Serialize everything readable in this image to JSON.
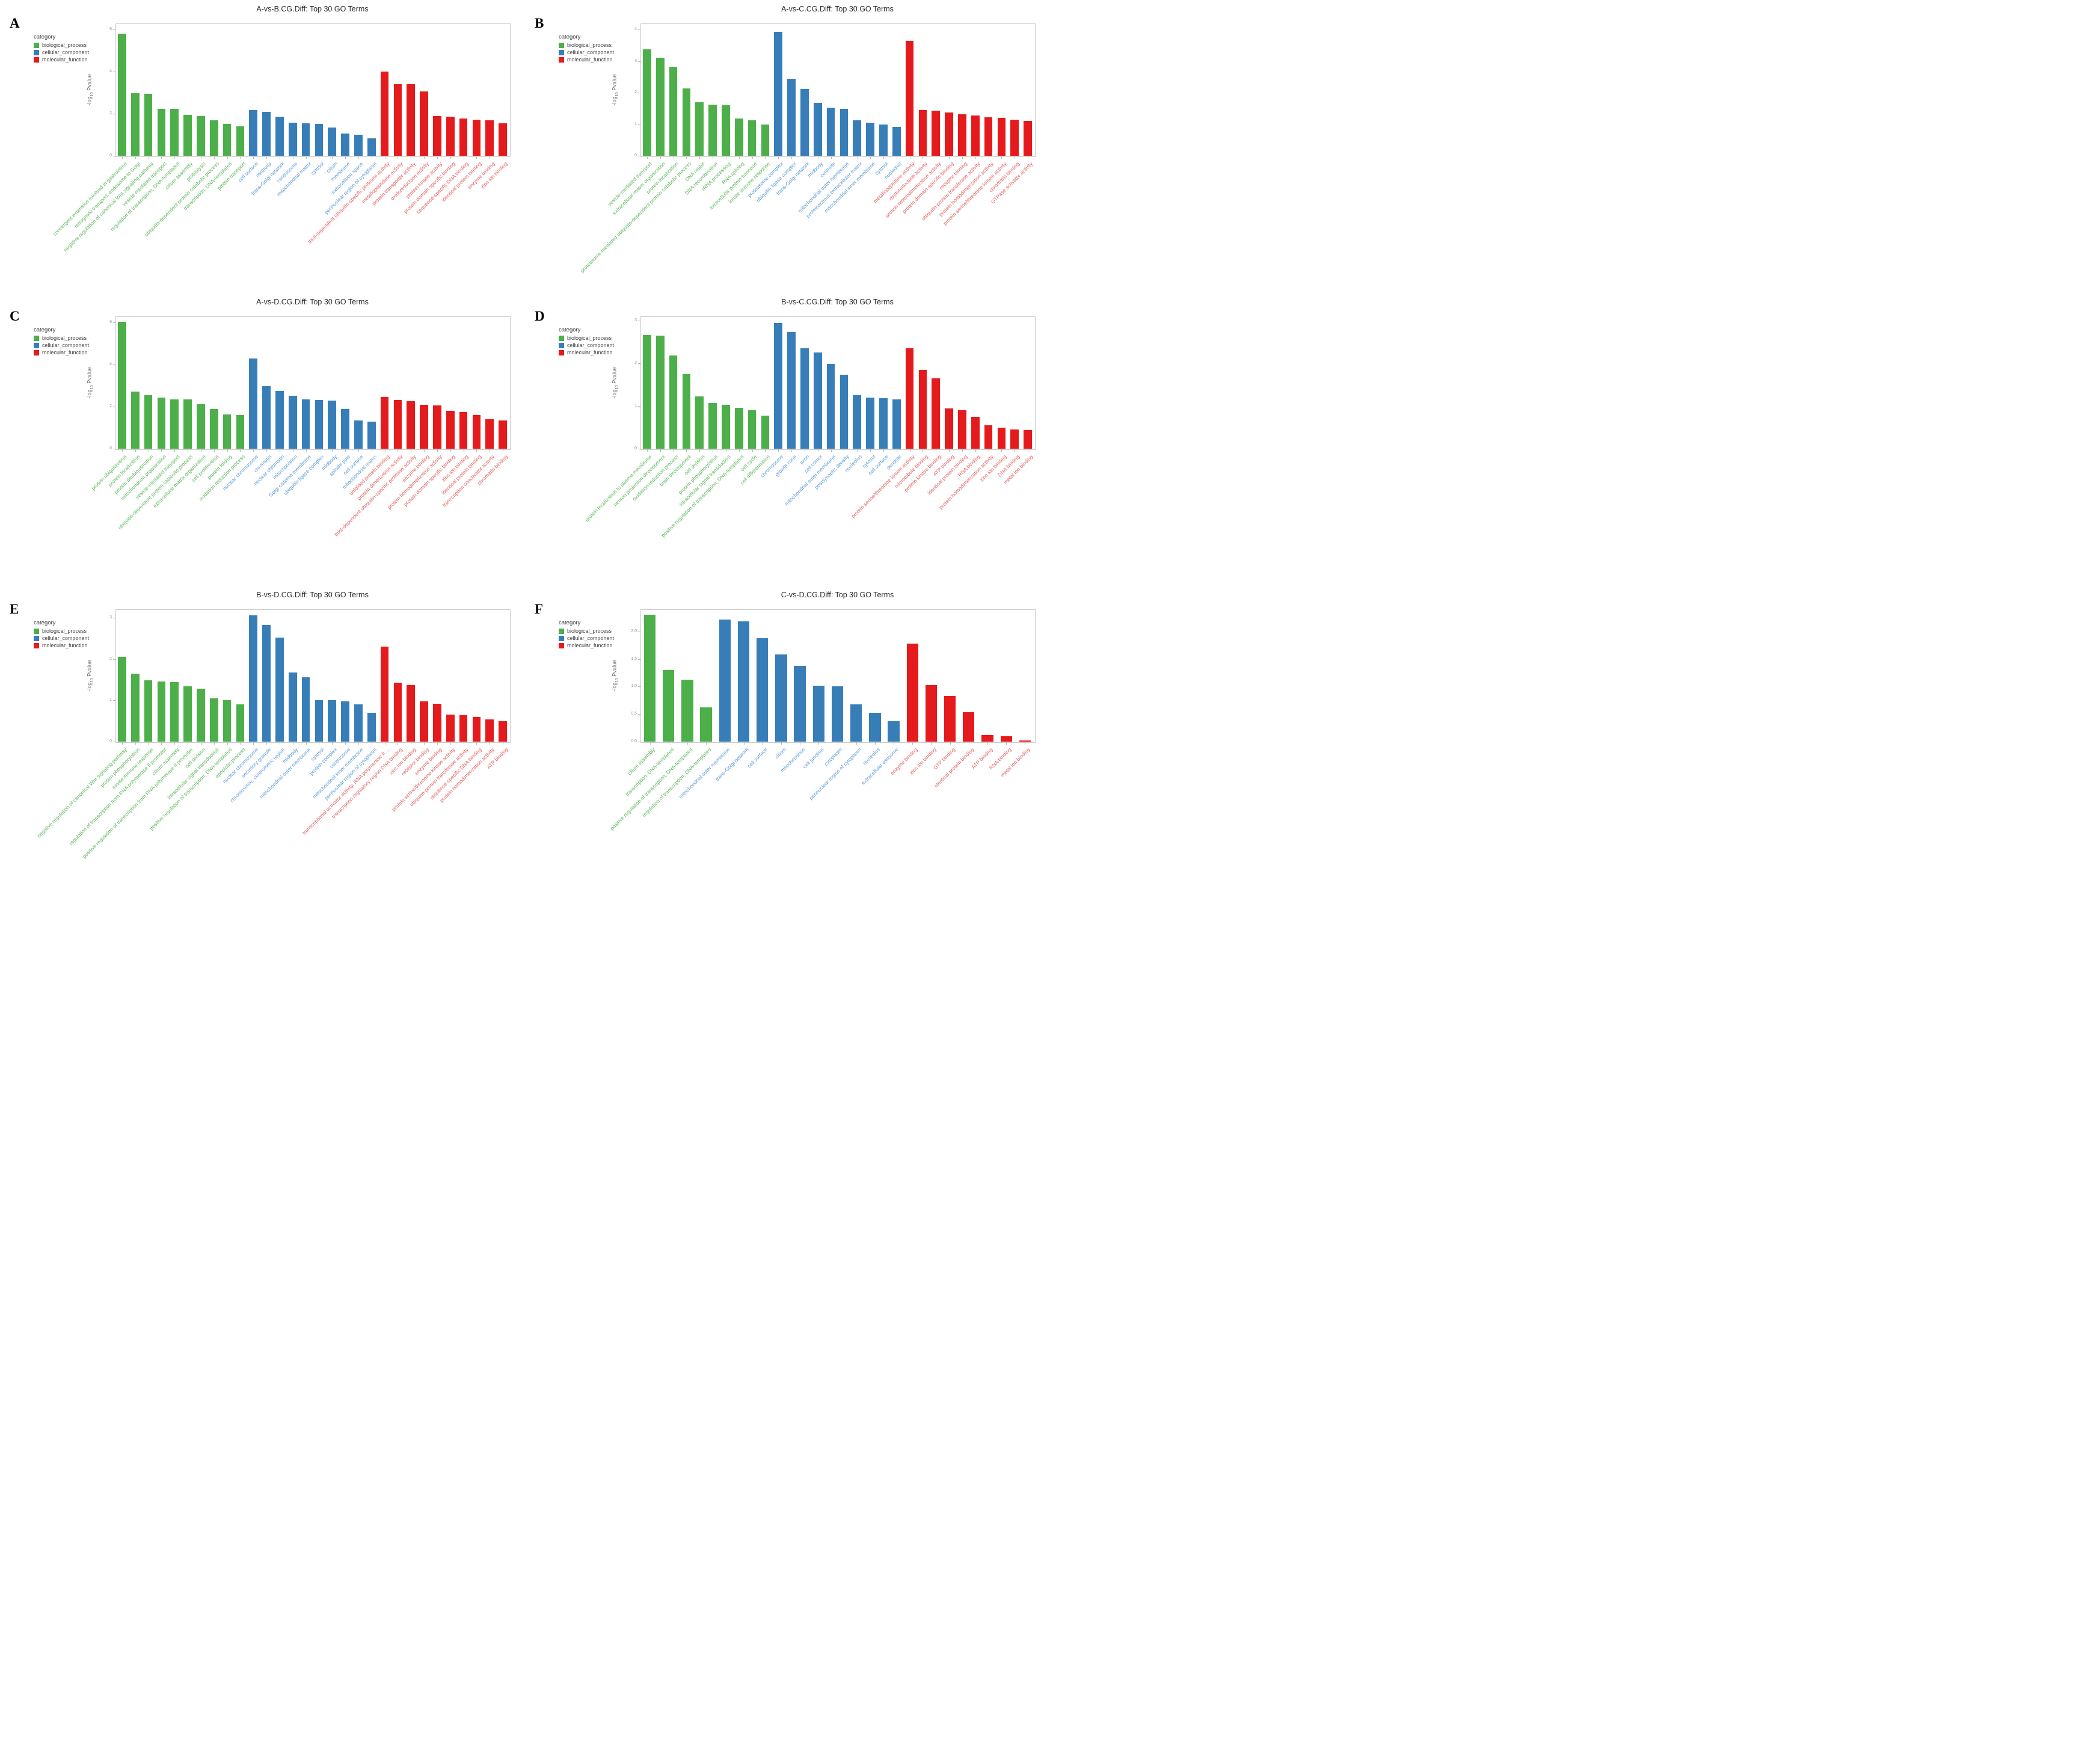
{
  "legend": {
    "title": "category",
    "items": [
      {
        "label": "biological_process",
        "color": "#4DAF4A"
      },
      {
        "label": "cellular_component",
        "color": "#377EB8"
      },
      {
        "label": "molecular_function",
        "color": "#E41A1C"
      }
    ]
  },
  "ylabel": {
    "prefix": "-log",
    "sub": "10",
    "suffix": " Pvalue"
  },
  "label_colors": {
    "biological_process": "#5cb85c",
    "cellular_component": "#5b9bd5",
    "molecular_function": "#e06060"
  },
  "chart_data": [
    {
      "letter": "A",
      "title": "A-vs-B.CG.Diff: Top 30 GO Terms",
      "type": "bar",
      "xlabel": "",
      "ylabel": "-log10 Pvalue",
      "ylim": [
        0,
        6.3
      ],
      "yticks": [
        "0",
        "2",
        "4",
        "6"
      ],
      "ytick_values": [
        0,
        2,
        4,
        6
      ],
      "grid": false,
      "legend_position": "top-left",
      "series": [
        {
          "name": "biological_process",
          "categories": [
            "convergent extension involved in gastrulation",
            "retrograde transport, endosome to Golgi",
            "negative regulation of canonical Wnt signaling pathway",
            "vesicle-mediated transport",
            "regulation of transcription, DNA-templated",
            "cilium assembly",
            "proteolysis",
            "ubiquitin-dependent protein catabolic process",
            "transcription, DNA-templated",
            "protein transport"
          ],
          "values": [
            5.82,
            2.97,
            2.95,
            2.23,
            2.22,
            1.96,
            1.9,
            1.68,
            1.52,
            1.41
          ]
        },
        {
          "name": "cellular_component",
          "categories": [
            "cell surface",
            "midbody",
            "trans-Golgi network",
            "centrosome",
            "mitochondrial matrix",
            "cytosol",
            "cilium",
            "membrane",
            "extracellular space",
            "perinuclear region of cytoplasm"
          ],
          "values": [
            2.19,
            2.08,
            1.87,
            1.58,
            1.54,
            1.51,
            1.35,
            1.05,
            1.0,
            0.82
          ]
        },
        {
          "name": "molecular_function",
          "categories": [
            "thiol-dependent ubiquitin-specific protease activity",
            "metallopeptidase activity",
            "protein transporter activity",
            "oxidoreductase activity",
            "protein kinase activity",
            "protein domain specific binding",
            "sequence-specific DNA binding",
            "identical protein binding",
            "enzyme binding",
            "zinc ion binding"
          ],
          "values": [
            4.0,
            3.42,
            3.4,
            3.05,
            1.9,
            1.85,
            1.78,
            1.72,
            1.7,
            1.55
          ]
        }
      ]
    },
    {
      "letter": "B",
      "title": "A-vs-C.CG.Diff: Top 30 GO Terms",
      "type": "bar",
      "xlabel": "",
      "ylabel": "-log10 Pvalue",
      "ylim": [
        0,
        4.2
      ],
      "yticks": [
        "0",
        "1",
        "2",
        "3",
        "4"
      ],
      "ytick_values": [
        0,
        1,
        2,
        3,
        4
      ],
      "grid": false,
      "legend_position": "top-left",
      "series": [
        {
          "name": "biological_process",
          "categories": [
            "vesicle-mediated transport",
            "extracellular matrix organization",
            "protein localization",
            "proteasome-mediated ubiquitin-dependent protein catabolic process",
            "DNA repair",
            "DNA recombination",
            "rRNA processing",
            "RNA splicing",
            "intracellular protein transport",
            "innate immune response"
          ],
          "values": [
            3.38,
            3.12,
            2.83,
            2.13,
            1.69,
            1.63,
            1.61,
            1.19,
            1.13,
            0.99
          ]
        },
        {
          "name": "cellular_component",
          "categories": [
            "proteasome complex",
            "ubiquitin ligase complex",
            "trans-Golgi network",
            "midbody",
            "centriole",
            "mitochondrial outer membrane",
            "proteinaceous extracellular matrix",
            "mitochondrial inner membrane",
            "cytosol",
            "nucleolus"
          ],
          "values": [
            3.93,
            2.44,
            2.12,
            1.68,
            1.52,
            1.48,
            1.12,
            1.05,
            1.0,
            0.92
          ]
        },
        {
          "name": "molecular_function",
          "categories": [
            "metallopeptidase activity",
            "oxidoreductase activity",
            "protein heterodimerization activity",
            "protein domain specific binding",
            "receptor binding",
            "ubiquitin-protein transferase activity",
            "protein homodimerization activity",
            "protein serine/threonine kinase activity",
            "chromatin binding",
            "GTPase activator activity"
          ],
          "values": [
            3.65,
            1.45,
            1.44,
            1.38,
            1.32,
            1.28,
            1.22,
            1.2,
            1.15,
            1.1
          ]
        }
      ]
    },
    {
      "letter": "C",
      "title": "A-vs-D.CG.Diff: Top 30 GO Terms",
      "type": "bar",
      "xlabel": "",
      "ylabel": "-log10 Pvalue",
      "ylim": [
        0,
        6.3
      ],
      "yticks": [
        "0",
        "2",
        "4",
        "6"
      ],
      "ytick_values": [
        0,
        2,
        4,
        6
      ],
      "grid": false,
      "legend_position": "top-left",
      "series": [
        {
          "name": "biological_process",
          "categories": [
            "protein ubiquitination",
            "protein localization",
            "protein deubiquitination",
            "mitochondrion organization",
            "vesicle-mediated transport",
            "ubiquitin-dependent protein catabolic process",
            "extracellular matrix organization",
            "cell proliferation",
            "protein folding",
            "oxidation-reduction process"
          ],
          "values": [
            6.03,
            2.71,
            2.56,
            2.42,
            2.36,
            2.36,
            2.11,
            1.88,
            1.64,
            1.6
          ]
        },
        {
          "name": "cellular_component",
          "categories": [
            "nuclear chromosome",
            "chromatin",
            "nuclear chromatin",
            "mitochondrion",
            "Golgi cisterna membrane",
            "ubiquitin ligase complex",
            "midbody",
            "spindle pole",
            "cell surface",
            "mitochondrial matrix"
          ],
          "values": [
            4.29,
            2.99,
            2.74,
            2.53,
            2.36,
            2.32,
            2.3,
            1.88,
            1.35,
            1.3
          ]
        },
        {
          "name": "molecular_function",
          "categories": [
            "unfolded protein binding",
            "protein dimerization activity",
            "thiol-dependent ubiquitin-specific protease activity",
            "enzyme binding",
            "protein homodimerization activity",
            "protein domain specific binding",
            "zinc ion binding",
            "identical protein binding",
            "transcription coactivator activity",
            "chromatin binding"
          ],
          "values": [
            2.45,
            2.32,
            2.25,
            2.1,
            2.05,
            1.8,
            1.75,
            1.6,
            1.4,
            1.35
          ]
        }
      ]
    },
    {
      "letter": "D",
      "title": "B-vs-C.CG.Diff: Top 30 GO Terms",
      "type": "bar",
      "xlabel": "",
      "ylabel": "-log10 Pvalue",
      "ylim": [
        0,
        3.1
      ],
      "yticks": [
        "0",
        "1",
        "2",
        "3"
      ],
      "ytick_values": [
        0,
        1,
        2,
        3
      ],
      "grid": false,
      "legend_position": "top-left",
      "series": [
        {
          "name": "biological_process",
          "categories": [
            "protein localization to plasma membrane",
            "neuron projection development",
            "oxidation-reduction process",
            "brain development",
            "cell division",
            "protein phosphorylation",
            "intracellular signal transduction",
            "positive regulation of transcription, DNA-templated",
            "cell cycle",
            "cell differentiation"
          ],
          "values": [
            2.67,
            2.65,
            2.18,
            1.75,
            1.22,
            1.07,
            1.03,
            0.96,
            0.9,
            0.78
          ]
        },
        {
          "name": "cellular_component",
          "categories": [
            "chromosome",
            "growth cone",
            "axon",
            "cell cortex",
            "mitochondrial outer membrane",
            "postsynaptic density",
            "nucleolus",
            "cytosol",
            "cell surface",
            "dendrite"
          ],
          "values": [
            2.94,
            2.74,
            2.35,
            2.26,
            1.99,
            1.73,
            1.25,
            1.2,
            1.18,
            1.15
          ]
        },
        {
          "name": "molecular_function",
          "categories": [
            "protein serine/threonine kinase activity",
            "microtubule binding",
            "protein kinase binding",
            "ATP binding",
            "identical protein binding",
            "RNA binding",
            "protein homodimerization activity",
            "zinc ion binding",
            "DNA binding",
            "metal ion binding"
          ],
          "values": [
            2.35,
            1.85,
            1.65,
            0.95,
            0.9,
            0.75,
            0.55,
            0.5,
            0.45,
            0.43
          ]
        }
      ]
    },
    {
      "letter": "E",
      "title": "B-vs-D.CG.Diff: Top 30 GO Terms",
      "type": "bar",
      "xlabel": "",
      "ylabel": "-log10 Pvalue",
      "ylim": [
        0,
        3.2
      ],
      "yticks": [
        "0",
        "1",
        "2",
        "3"
      ],
      "ytick_values": [
        0,
        1,
        2,
        3
      ],
      "grid": false,
      "legend_position": "top-left",
      "series": [
        {
          "name": "biological_process",
          "categories": [
            "negative regulation of canonical Wnt signaling pathway",
            "protein phosphorylation",
            "innate immune response",
            "regulation of transcription from RNA polymerase II promoter",
            "cilium assembly",
            "positive regulation of transcription from RNA polymerase II promoter",
            "cell division",
            "intracellular signal transduction",
            "positive regulation of transcription, DNA-templated",
            "apoptotic process"
          ],
          "values": [
            2.05,
            1.65,
            1.48,
            1.45,
            1.44,
            1.34,
            1.28,
            1.05,
            1.0,
            0.9
          ]
        },
        {
          "name": "cellular_component",
          "categories": [
            "nuclear chromosome",
            "secretory granule",
            "chromosome, centromeric region",
            "midbody",
            "mitochondrial outer membrane",
            "cytosol",
            "protein complex",
            "centrosome",
            "mitochondrial inner membrane",
            "perinuclear region of cytoplasm"
          ],
          "values": [
            3.05,
            2.82,
            2.52,
            1.68,
            1.55,
            1.01,
            1.0,
            0.97,
            0.9,
            0.7
          ]
        },
        {
          "name": "molecular_function",
          "categories": [
            "transcriptional activator activity, RNA polymerase II ...",
            "transcription regulatory region DNA binding",
            "zinc ion binding",
            "receptor binding",
            "enzyme binding",
            "protein serine/threonine kinase activity",
            "ubiquitin-protein transferase activity",
            "sequence-specific DNA binding",
            "protein homodimerization activity",
            "ATP binding"
          ],
          "values": [
            2.3,
            1.43,
            1.37,
            0.98,
            0.92,
            0.66,
            0.64,
            0.59,
            0.54,
            0.49
          ]
        }
      ]
    },
    {
      "letter": "F",
      "title": "C-vs-D.CG.Diff: Top 30 GO Terms",
      "type": "bar",
      "xlabel": "",
      "ylabel": "-log10 Pvalue",
      "ylim": [
        0,
        2.4
      ],
      "yticks": [
        "0.0",
        "0.5",
        "1.0",
        "1.5",
        "2.0"
      ],
      "ytick_values": [
        0,
        0.5,
        1,
        1.5,
        2
      ],
      "grid": false,
      "legend_position": "top-left",
      "series": [
        {
          "name": "biological_process",
          "categories": [
            "cilium assembly",
            "transcription, DNA-templated",
            "positive regulation of transcription, DNA-templated",
            "regulation of transcription, DNA-templated"
          ],
          "values": [
            2.3,
            1.3,
            1.12,
            0.62
          ]
        },
        {
          "name": "cellular_component",
          "categories": [
            "mitochondrial outer membrane",
            "trans-Golgi network",
            "cell surface",
            "cilium",
            "mitochondrion",
            "cell junction",
            "cytoplasm",
            "perinuclear region of cytoplasm",
            "nucleolus",
            "extracellular exosome"
          ],
          "values": [
            2.22,
            2.18,
            1.88,
            1.58,
            1.38,
            1.01,
            1.0,
            0.68,
            0.52,
            0.37
          ]
        },
        {
          "name": "molecular_function",
          "categories": [
            "enzyme binding",
            "zinc ion binding",
            "GTP binding",
            "identical protein binding",
            "ATP binding",
            "RNA binding",
            "metal ion binding"
          ],
          "values": [
            1.78,
            1.03,
            0.83,
            0.53,
            0.12,
            0.1,
            0.02
          ]
        }
      ]
    }
  ]
}
